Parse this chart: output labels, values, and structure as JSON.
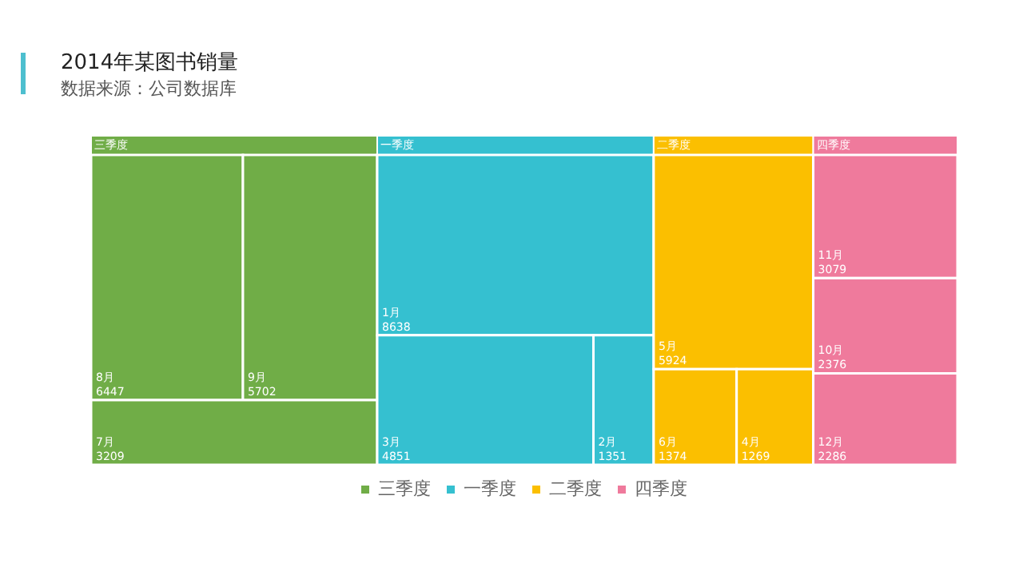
{
  "chart_data": {
    "type": "other",
    "title": "2014年某图书销量",
    "subtitle": "数据来源：公司数据库",
    "categories": [
      "8月",
      "9月",
      "7月",
      "1月",
      "3月",
      "2月",
      "5月",
      "6月",
      "4月",
      "11月",
      "10月",
      "12月"
    ],
    "series": [
      {
        "name": "三季度",
        "color": "#70ad47",
        "values": [
          6447,
          5702,
          3209,
          null,
          null,
          null,
          null,
          null,
          null,
          null,
          null,
          null
        ]
      },
      {
        "name": "一季度",
        "color": "#35c0d0",
        "values": [
          null,
          null,
          null,
          8638,
          4851,
          1351,
          null,
          null,
          null,
          null,
          null,
          null
        ]
      },
      {
        "name": "二季度",
        "color": "#fbbf00",
        "values": [
          null,
          null,
          null,
          null,
          null,
          null,
          5924,
          1374,
          1269,
          null,
          null,
          null
        ]
      },
      {
        "name": "四季度",
        "color": "#ef7a9c",
        "values": [
          null,
          null,
          null,
          null,
          null,
          null,
          null,
          null,
          null,
          3079,
          2376,
          2286
        ]
      }
    ],
    "data_labels": true,
    "legend": "bottom"
  }
}
